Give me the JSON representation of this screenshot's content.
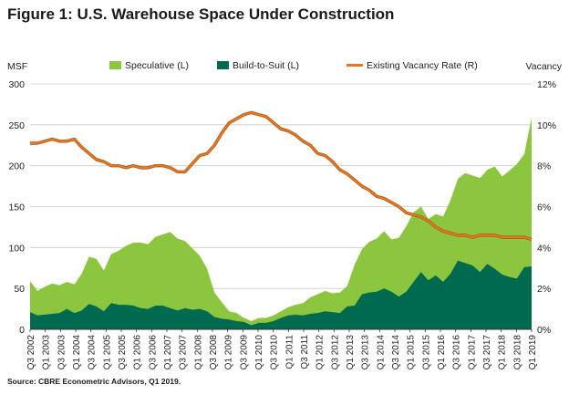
{
  "header": {
    "title": "Figure 1: U.S. Warehouse Space Under Construction",
    "source": "Source: CBRE Econometric Advisors, Q1 2019."
  },
  "chart_data": {
    "type": "area",
    "title": "Figure 1: U.S. Warehouse Space Under Construction",
    "ylabel": "MSF",
    "y2label": "Vacancy",
    "ylim": [
      0,
      300
    ],
    "y2lim": [
      0,
      12
    ],
    "yticks": [
      "0",
      "50",
      "100",
      "150",
      "200",
      "250",
      "300"
    ],
    "y2ticks": [
      "0%",
      "2%",
      "4%",
      "6%",
      "8%",
      "10%",
      "12%"
    ],
    "xtick_labels": [
      "Q3 2002",
      "Q1 2003",
      "Q3 2003",
      "Q1 2004",
      "Q3 2004",
      "Q1 2005",
      "Q3 2005",
      "Q1 2006",
      "Q3 2006",
      "Q1 2007",
      "Q3 2007",
      "Q1 2008",
      "Q3 2008",
      "Q1 2009",
      "Q3 2009",
      "Q1 2010",
      "Q3 2010",
      "Q1 2011",
      "Q3 2011",
      "Q1 2012",
      "Q3 2012",
      "Q1 2013",
      "Q3 2013",
      "Q1 2014",
      "Q3 2014",
      "Q1 2015",
      "Q3 2015",
      "Q1 2016",
      "Q3 2016",
      "Q1 2017",
      "Q3 2017",
      "Q1 2018",
      "Q3 2018",
      "Q1 2019"
    ],
    "legend_position": "top",
    "series": [
      {
        "name": "Speculative (L)",
        "color": "#8cc63f",
        "stack": "total",
        "axis": "left",
        "values": [
          38,
          30,
          34,
          37,
          34,
          33,
          35,
          45,
          58,
          58,
          50,
          60,
          66,
          72,
          77,
          80,
          79,
          84,
          87,
          93,
          88,
          82,
          75,
          65,
          52,
          30,
          20,
          10,
          10,
          5,
          5,
          6,
          6,
          7,
          8,
          10,
          12,
          15,
          20,
          23,
          25,
          23,
          25,
          25,
          50,
          55,
          62,
          65,
          70,
          64,
          72,
          80,
          85,
          80,
          75,
          75,
          80,
          90,
          100,
          110,
          110,
          115,
          115,
          125,
          120,
          130,
          140,
          138,
          182
        ]
      },
      {
        "name": "Build-to-Suit (L)",
        "color": "#006a4e",
        "stack": "total",
        "axis": "left",
        "values": [
          21,
          17,
          18,
          19,
          20,
          25,
          20,
          23,
          31,
          28,
          22,
          32,
          30,
          30,
          29,
          26,
          25,
          29,
          29,
          26,
          23,
          26,
          24,
          25,
          22,
          15,
          13,
          12,
          10,
          9,
          5,
          8,
          8,
          10,
          14,
          17,
          18,
          17,
          19,
          20,
          22,
          21,
          20,
          28,
          29,
          43,
          45,
          46,
          50,
          46,
          40,
          46,
          58,
          70,
          60,
          66,
          58,
          68,
          84,
          81,
          78,
          70,
          80,
          74,
          67,
          64,
          62,
          76,
          77
        ]
      },
      {
        "name": "Existing Vacancy Rate (R)",
        "color": "#e87722",
        "axis": "right",
        "values": [
          9.1,
          9.1,
          9.2,
          9.3,
          9.2,
          9.2,
          9.3,
          8.9,
          8.6,
          8.3,
          8.2,
          8.0,
          8.0,
          7.9,
          8.0,
          7.9,
          7.9,
          8.0,
          8.0,
          7.9,
          7.7,
          7.7,
          8.1,
          8.5,
          8.6,
          9.0,
          9.6,
          10.1,
          10.3,
          10.5,
          10.6,
          10.5,
          10.4,
          10.1,
          9.8,
          9.7,
          9.5,
          9.2,
          9.0,
          8.6,
          8.5,
          8.2,
          7.8,
          7.6,
          7.3,
          7.0,
          6.8,
          6.5,
          6.4,
          6.2,
          6.0,
          5.7,
          5.6,
          5.5,
          5.3,
          5.0,
          4.8,
          4.7,
          4.6,
          4.6,
          4.5,
          4.6,
          4.6,
          4.6,
          4.5,
          4.5,
          4.5,
          4.5,
          4.4
        ]
      }
    ]
  }
}
